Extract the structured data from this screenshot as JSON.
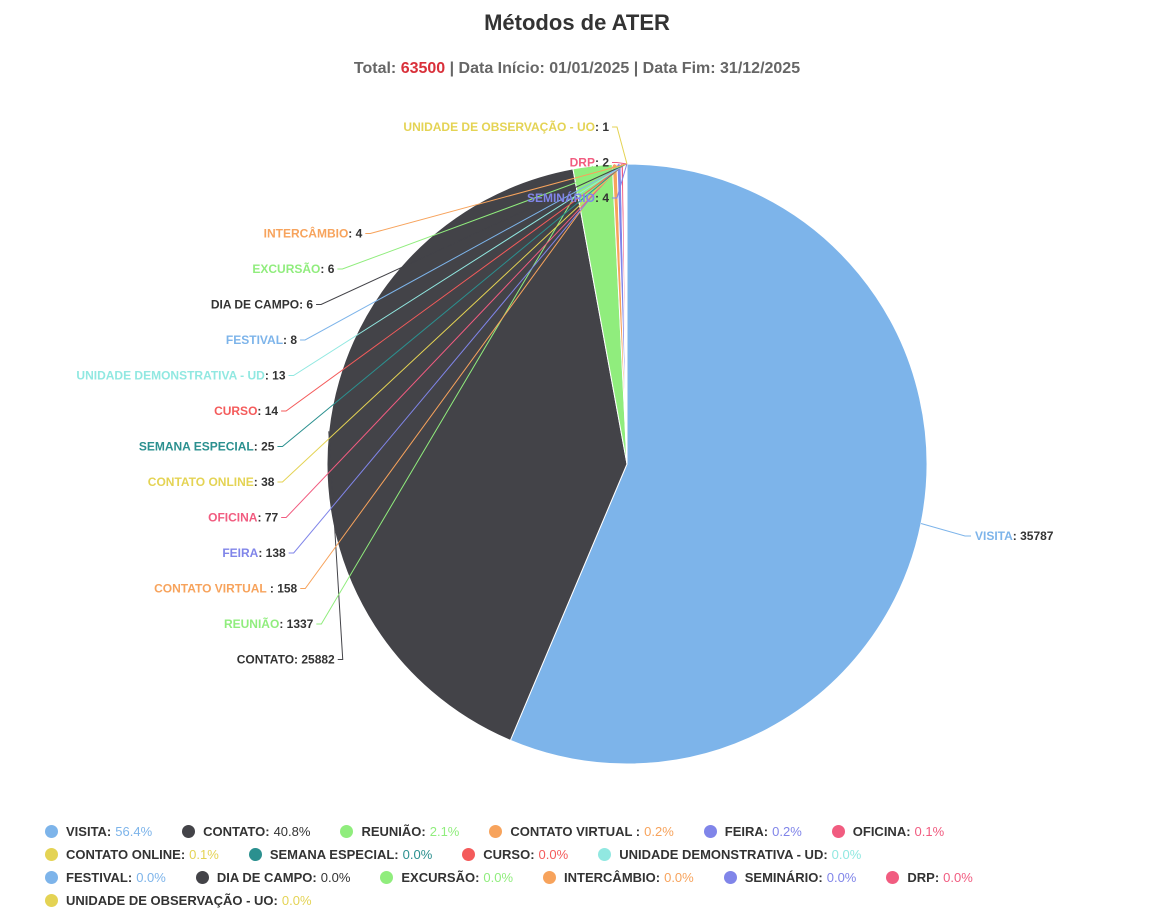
{
  "header": {
    "title": "Métodos de ATER",
    "total_label": "Total: ",
    "total_value": "63500",
    "dates": " | Data Início: 01/01/2025 | Data Fim: 31/12/2025"
  },
  "chart_data": {
    "type": "pie",
    "title": "Métodos de ATER",
    "subtitle": "Total: 63500 | Data Início: 01/01/2025 | Data Fim: 31/12/2025",
    "slices": [
      {
        "name": "VISITA",
        "value": 35787,
        "pct": "56.4%",
        "color": "#7db4ea"
      },
      {
        "name": "CONTATO",
        "value": 25882,
        "pct": "40.8%",
        "color": "#434348"
      },
      {
        "name": "REUNIÃO",
        "value": 1337,
        "pct": "2.1%",
        "color": "#90ed7d"
      },
      {
        "name": "CONTATO VIRTUAL ",
        "value": 158,
        "pct": "0.2%",
        "color": "#f7a35c"
      },
      {
        "name": "FEIRA",
        "value": 138,
        "pct": "0.2%",
        "color": "#8085e9"
      },
      {
        "name": "OFICINA",
        "value": 77,
        "pct": "0.1%",
        "color": "#f15c80"
      },
      {
        "name": "CONTATO ONLINE",
        "value": 38,
        "pct": "0.1%",
        "color": "#e4d354"
      },
      {
        "name": "SEMANA ESPECIAL",
        "value": 25,
        "pct": "0.0%",
        "color": "#2b908f"
      },
      {
        "name": "CURSO",
        "value": 14,
        "pct": "0.0%",
        "color": "#f45b5b"
      },
      {
        "name": "UNIDADE DEMONSTRATIVA - UD",
        "value": 13,
        "pct": "0.0%",
        "color": "#91e8e1"
      },
      {
        "name": "FESTIVAL",
        "value": 8,
        "pct": "0.0%",
        "color": "#7db4ea"
      },
      {
        "name": "DIA DE CAMPO",
        "value": 6,
        "pct": "0.0%",
        "color": "#434348"
      },
      {
        "name": "EXCURSÃO",
        "value": 6,
        "pct": "0.0%",
        "color": "#90ed7d"
      },
      {
        "name": "INTERCÂMBIO",
        "value": 4,
        "pct": "0.0%",
        "color": "#f7a35c"
      },
      {
        "name": "SEMINÁRIO",
        "value": 4,
        "pct": "0.0%",
        "color": "#8085e9"
      },
      {
        "name": "DRP",
        "value": 2,
        "pct": "0.0%",
        "color": "#f15c80"
      },
      {
        "name": "UNIDADE DE OBSERVAÇÃO - UO",
        "value": 1,
        "pct": "0.0%",
        "color": "#e4d354"
      }
    ]
  }
}
